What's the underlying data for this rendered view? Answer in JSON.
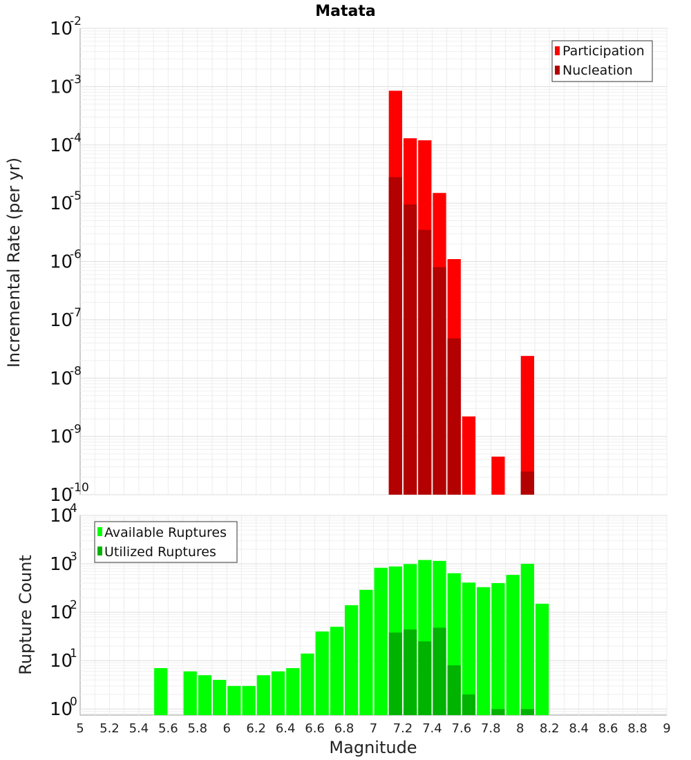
{
  "chart_data": [
    {
      "type": "bar",
      "title": "Matata",
      "xlabel": "",
      "ylabel": "Incremental Rate (per yr)",
      "yscale": "log",
      "ylim": [
        1e-10,
        0.01
      ],
      "xlim": [
        5,
        9
      ],
      "y_ticks": [
        {
          "base": "10",
          "exp": "-2",
          "value": 0.01
        },
        {
          "base": "10",
          "exp": "-3",
          "value": 0.001
        },
        {
          "base": "10",
          "exp": "-4",
          "value": 0.0001
        },
        {
          "base": "10",
          "exp": "-5",
          "value": 1e-05
        },
        {
          "base": "10",
          "exp": "-6",
          "value": 1e-06
        },
        {
          "base": "10",
          "exp": "-7",
          "value": 1e-07
        },
        {
          "base": "10",
          "exp": "-8",
          "value": 1e-08
        },
        {
          "base": "10",
          "exp": "-9",
          "value": 1e-09
        },
        {
          "base": "10",
          "exp": "-10",
          "value": 1e-10
        }
      ],
      "legend": {
        "position": "top-right",
        "entries": [
          {
            "label": "Participation",
            "color": "#ff0000"
          },
          {
            "label": "Nucleation",
            "color": "#b30000"
          }
        ]
      },
      "series": [
        {
          "name": "Participation",
          "color": "#ff0000",
          "x": [
            7.15,
            7.25,
            7.35,
            7.45,
            7.55,
            7.65,
            7.85,
            8.05
          ],
          "values": [
            0.00085,
            0.00013,
            0.00012,
            1.5e-05,
            1.1e-06,
            2.2e-09,
            4.5e-10,
            2.4e-08
          ]
        },
        {
          "name": "Nucleation",
          "color": "#b30000",
          "x": [
            7.15,
            7.25,
            7.35,
            7.45,
            7.55,
            8.05
          ],
          "values": [
            2.8e-05,
            9.5e-06,
            3.5e-06,
            8e-07,
            4.8e-08,
            2.5e-10
          ]
        }
      ]
    },
    {
      "type": "bar",
      "title": "",
      "xlabel": "Magnitude",
      "ylabel": "Rupture Count",
      "yscale": "log",
      "ylim": [
        0.75,
        10000
      ],
      "xlim": [
        5,
        9
      ],
      "x_ticks": [
        "5",
        "5.2",
        "5.4",
        "5.6",
        "5.8",
        "6",
        "6.2",
        "6.4",
        "6.6",
        "6.8",
        "7",
        "7.2",
        "7.4",
        "7.6",
        "7.8",
        "8",
        "8.2",
        "8.4",
        "8.6",
        "8.8",
        "9"
      ],
      "y_ticks": [
        {
          "base": "10",
          "exp": "4",
          "value": 10000
        },
        {
          "base": "10",
          "exp": "3",
          "value": 1000
        },
        {
          "base": "10",
          "exp": "2",
          "value": 100
        },
        {
          "base": "10",
          "exp": "1",
          "value": 10
        },
        {
          "base": "10",
          "exp": "0",
          "value": 1
        }
      ],
      "legend": {
        "position": "top-left",
        "entries": [
          {
            "label": "Available Ruptures",
            "color": "#00ff00"
          },
          {
            "label": "Utilized Ruptures",
            "color": "#00b300"
          }
        ]
      },
      "series": [
        {
          "name": "Available Ruptures",
          "color": "#00ff00",
          "x": [
            5.55,
            5.75,
            5.85,
            5.95,
            6.05,
            6.15,
            6.25,
            6.35,
            6.45,
            6.55,
            6.65,
            6.75,
            6.85,
            6.95,
            7.05,
            7.15,
            7.25,
            7.35,
            7.45,
            7.55,
            7.65,
            7.75,
            7.85,
            7.95,
            8.05,
            8.15
          ],
          "values": [
            7,
            6,
            5,
            4,
            3,
            3,
            5,
            6,
            7,
            14,
            40,
            50,
            140,
            290,
            830,
            880,
            990,
            1200,
            1150,
            640,
            410,
            330,
            400,
            590,
            1000,
            150
          ]
        },
        {
          "name": "Utilized Ruptures",
          "color": "#00b300",
          "x": [
            7.15,
            7.25,
            7.35,
            7.45,
            7.55,
            7.65,
            7.85,
            8.05
          ],
          "values": [
            38,
            44,
            25,
            48,
            8,
            2,
            1,
            1
          ]
        }
      ]
    }
  ]
}
